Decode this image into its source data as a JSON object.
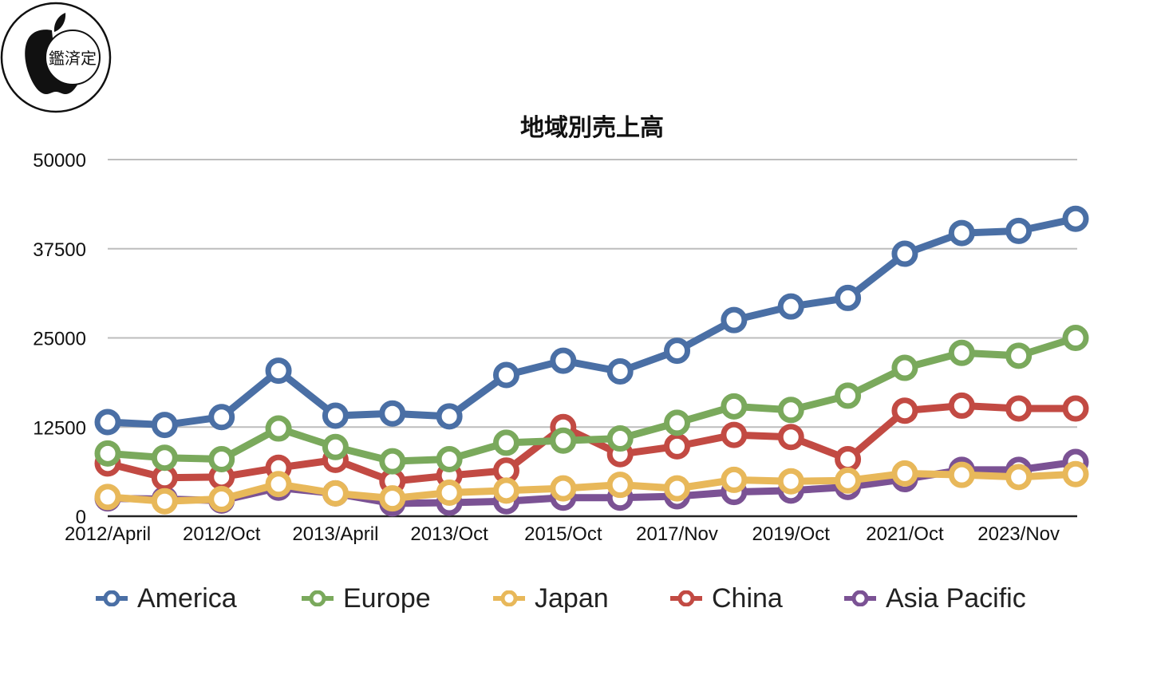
{
  "seal": {
    "text": "鑑済定"
  },
  "chart_data": {
    "type": "line",
    "title": "地域別売上高",
    "xlabel": "",
    "ylabel": "",
    "ylim": [
      0,
      50000
    ],
    "yticks": [
      0,
      12500,
      25000,
      37500,
      50000
    ],
    "categories": [
      "2012/April",
      "",
      "2012/Oct",
      "",
      "2013/April",
      "",
      "2013/Oct",
      "",
      "2015/Oct",
      "",
      "2017/Nov",
      "",
      "2019/Oct",
      "",
      "2021/Oct",
      "",
      "2023/Nov",
      ""
    ],
    "grid": true,
    "legend_position": "bottom",
    "series": [
      {
        "name": "America",
        "color": "#4a6fa5",
        "values": [
          13200,
          12800,
          13900,
          20400,
          14100,
          14400,
          14000,
          19800,
          21800,
          20300,
          23200,
          27500,
          29400,
          30600,
          36800,
          39700,
          40000,
          41700
        ]
      },
      {
        "name": "Europe",
        "color": "#7aa95c",
        "values": [
          8800,
          8200,
          8000,
          12300,
          9700,
          7700,
          8000,
          10300,
          10600,
          10900,
          13100,
          15400,
          14900,
          16900,
          20800,
          22900,
          22500,
          25000
        ]
      },
      {
        "name": "Japan",
        "color": "#e8b85a",
        "values": [
          2700,
          2100,
          2400,
          4500,
          3200,
          2500,
          3300,
          3600,
          3900,
          4400,
          3900,
          5100,
          4900,
          5000,
          6000,
          5800,
          5500,
          5900
        ]
      },
      {
        "name": "China",
        "color": "#c24a43",
        "values": [
          7400,
          5400,
          5500,
          6800,
          7900,
          4900,
          5700,
          6400,
          12500,
          8700,
          9800,
          11400,
          11100,
          8000,
          14800,
          15500,
          15100,
          15100
        ]
      },
      {
        "name": "Asia Pacific",
        "color": "#7b5294",
        "values": [
          2500,
          2400,
          2200,
          4000,
          3200,
          1800,
          1900,
          2100,
          2600,
          2600,
          2800,
          3400,
          3600,
          4100,
          5200,
          6500,
          6500,
          7600
        ]
      }
    ]
  }
}
